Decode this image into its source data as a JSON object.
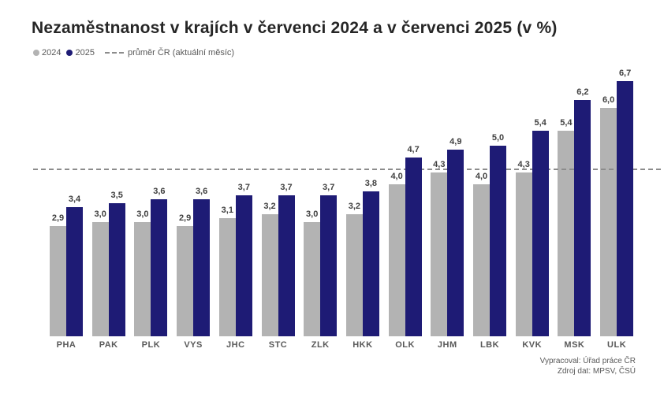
{
  "title": "Nezaměstnanost v krajích v červenci 2024 a v červenci 2025 (v %)",
  "legend": {
    "series_2024": "2024",
    "series_2025": "2025",
    "avg_label": "průměr ČR (aktuální měsíc)"
  },
  "footer": {
    "line1": "Vypracoval: Úřad práce ČR",
    "line2": "Zdroj dat: MPSV, ČSÚ"
  },
  "colors": {
    "bar_2024": "#b3b3b3",
    "bar_2025": "#1e1b75",
    "avg_line": "#8c8c8c",
    "title": "#262626",
    "value_label": "#404040",
    "axis_label": "#595959",
    "footer": "#595959"
  },
  "chart_data": {
    "type": "bar",
    "title": "Nezaměstnanost v krajích v červenci 2024 a v červenci 2025 (v %)",
    "categories": [
      "PHA",
      "PAK",
      "PLK",
      "VYS",
      "JHC",
      "STC",
      "ZLK",
      "HKK",
      "OLK",
      "JHM",
      "LBK",
      "KVK",
      "MSK",
      "ULK"
    ],
    "series": [
      {
        "name": "2024",
        "values": [
          2.9,
          3.0,
          3.0,
          2.9,
          3.1,
          3.2,
          3.0,
          3.2,
          4.0,
          4.3,
          4.0,
          4.3,
          5.4,
          6.0
        ]
      },
      {
        "name": "2025",
        "values": [
          3.4,
          3.5,
          3.6,
          3.6,
          3.7,
          3.7,
          3.7,
          3.8,
          4.7,
          4.9,
          5.0,
          5.4,
          6.2,
          6.7
        ]
      }
    ],
    "reference_line": {
      "value": 4.4,
      "label": "průměr ČR (aktuální měsíc)",
      "style": "dashed"
    },
    "xlabel": "",
    "ylabel": "",
    "ylim": [
      0,
      7.5
    ],
    "y_axis_visible": false,
    "grid": false,
    "data_labels": true,
    "decimal_separator": ",",
    "legend_position": "top-left"
  }
}
